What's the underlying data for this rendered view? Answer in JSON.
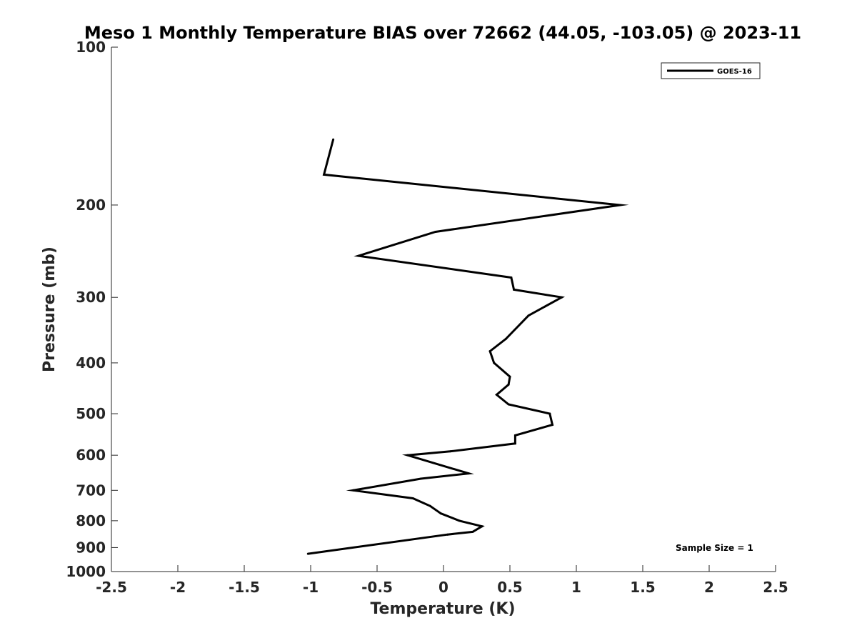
{
  "chart_data": {
    "type": "line",
    "title": "Meso 1 Monthly Temperature BIAS over 72662 (44.05, -103.05) @ 2023-11",
    "xlabel": "Temperature (K)",
    "ylabel": "Pressure (mb)",
    "xlim": [
      -2.5,
      2.5
    ],
    "ylim": [
      100,
      1000
    ],
    "y_scale": "log",
    "y_direction": "reversed",
    "xticks": [
      -2.5,
      -2,
      -1.5,
      -1,
      -0.5,
      0,
      0.5,
      1,
      1.5,
      2,
      2.5
    ],
    "xtick_labels": [
      "-2.5",
      "-2",
      "-1.5",
      "-1",
      "-0.5",
      "0",
      "0.5",
      "1",
      "1.5",
      "2",
      "2.5"
    ],
    "yticks": [
      100,
      200,
      300,
      400,
      500,
      600,
      700,
      800,
      900,
      1000
    ],
    "ytick_labels": [
      "100",
      "200",
      "300",
      "400",
      "500",
      "600",
      "700",
      "800",
      "900",
      "1000"
    ],
    "grid": false,
    "legend_position": "top-right",
    "annotation": "Sample Size = 1",
    "series": [
      {
        "name": "GOES-16",
        "color": "#000000",
        "points": [
          {
            "x": -0.83,
            "y": 150
          },
          {
            "x": -0.9,
            "y": 175
          },
          {
            "x": 1.33,
            "y": 200
          },
          {
            "x": -0.06,
            "y": 225
          },
          {
            "x": -0.64,
            "y": 250
          },
          {
            "x": 0.51,
            "y": 275
          },
          {
            "x": 0.53,
            "y": 290
          },
          {
            "x": 0.89,
            "y": 300
          },
          {
            "x": 0.64,
            "y": 325
          },
          {
            "x": 0.47,
            "y": 360
          },
          {
            "x": 0.35,
            "y": 380
          },
          {
            "x": 0.38,
            "y": 400
          },
          {
            "x": 0.5,
            "y": 425
          },
          {
            "x": 0.49,
            "y": 440
          },
          {
            "x": 0.4,
            "y": 460
          },
          {
            "x": 0.49,
            "y": 480
          },
          {
            "x": 0.8,
            "y": 500
          },
          {
            "x": 0.82,
            "y": 525
          },
          {
            "x": 0.54,
            "y": 550
          },
          {
            "x": 0.54,
            "y": 570
          },
          {
            "x": 0.05,
            "y": 590
          },
          {
            "x": -0.27,
            "y": 600
          },
          {
            "x": 0.19,
            "y": 650
          },
          {
            "x": -0.17,
            "y": 665
          },
          {
            "x": -0.68,
            "y": 700
          },
          {
            "x": -0.23,
            "y": 725
          },
          {
            "x": -0.1,
            "y": 750
          },
          {
            "x": -0.02,
            "y": 775
          },
          {
            "x": 0.12,
            "y": 800
          },
          {
            "x": 0.29,
            "y": 820
          },
          {
            "x": 0.22,
            "y": 840
          },
          {
            "x": 0.03,
            "y": 850
          },
          {
            "x": -1.02,
            "y": 925
          }
        ]
      }
    ]
  }
}
